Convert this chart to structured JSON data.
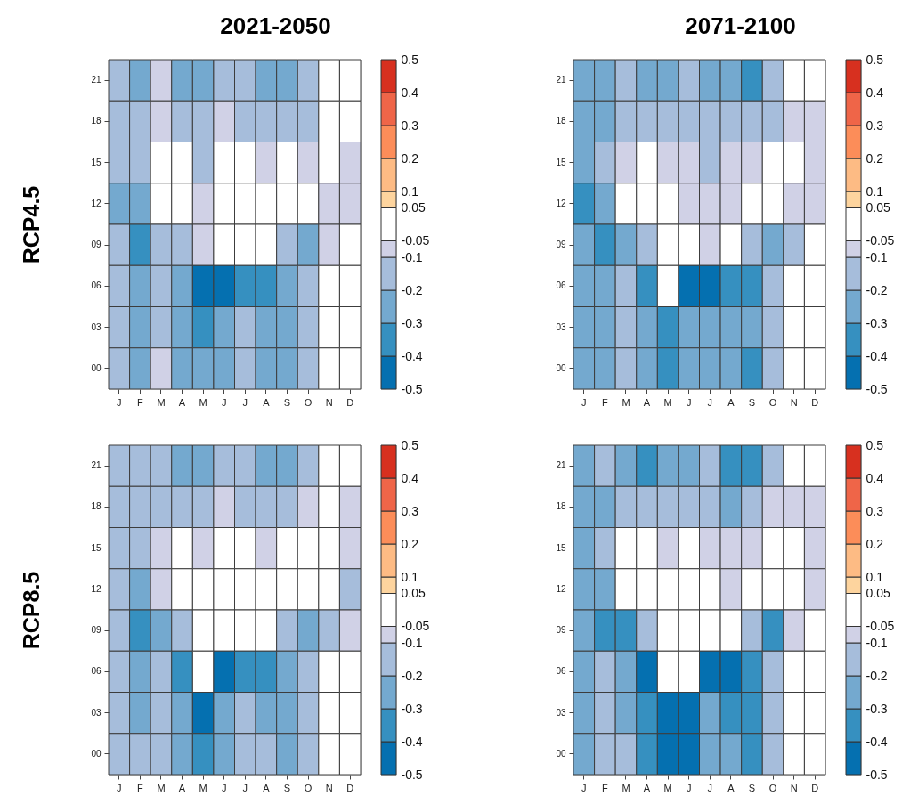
{
  "chart_data": [
    {
      "type": "heatmap",
      "title": "2021-2050",
      "ylabel": "RCP4.5",
      "categories": [
        "J",
        "F",
        "M",
        "A",
        "M",
        "J",
        "J",
        "A",
        "S",
        "O",
        "N",
        "D"
      ],
      "y_categories": [
        "21",
        "18",
        "15",
        "12",
        "09",
        "06",
        "03",
        "00"
      ],
      "cells": [
        [
          -0.15,
          -0.25,
          -0.075,
          -0.25,
          -0.25,
          -0.15,
          -0.15,
          -0.25,
          -0.25,
          -0.15,
          0,
          0
        ],
        [
          -0.15,
          -0.15,
          -0.075,
          -0.15,
          -0.15,
          -0.075,
          -0.15,
          -0.15,
          -0.15,
          -0.15,
          0,
          0
        ],
        [
          -0.15,
          -0.15,
          0,
          0,
          -0.15,
          0,
          0,
          -0.075,
          0,
          -0.075,
          0,
          -0.075
        ],
        [
          -0.25,
          -0.25,
          0,
          0,
          -0.075,
          0,
          0,
          0,
          0,
          0,
          -0.075,
          -0.075
        ],
        [
          -0.15,
          -0.35,
          -0.15,
          -0.15,
          -0.075,
          0,
          0,
          0,
          -0.15,
          -0.25,
          -0.075,
          0
        ],
        [
          -0.15,
          -0.25,
          -0.15,
          -0.25,
          -0.45,
          -0.45,
          -0.35,
          -0.35,
          -0.25,
          -0.15,
          0,
          0
        ],
        [
          -0.15,
          -0.25,
          -0.15,
          -0.25,
          -0.35,
          -0.25,
          -0.15,
          -0.25,
          -0.25,
          -0.15,
          0,
          0
        ],
        [
          -0.15,
          -0.25,
          -0.075,
          -0.25,
          -0.25,
          -0.25,
          -0.15,
          -0.25,
          -0.25,
          -0.15,
          0,
          0
        ]
      ],
      "clim": [
        -0.5,
        0.5
      ],
      "cticks": [
        -0.5,
        -0.4,
        -0.3,
        -0.2,
        -0.1,
        -0.05,
        0.05,
        0.1,
        0.2,
        0.3,
        0.4,
        0.5
      ],
      "colors": [
        "#0570b0",
        "#3690c0",
        "#74a9cf",
        "#a6bddb",
        "#d0d1e6",
        "#ffffff",
        "#fdd49e",
        "#fdbb84",
        "#fc8d59",
        "#ef6548",
        "#d7301f"
      ]
    },
    {
      "type": "heatmap",
      "title": "2071-2100",
      "categories": [
        "J",
        "F",
        "M",
        "A",
        "M",
        "J",
        "J",
        "A",
        "S",
        "O",
        "N",
        "D"
      ],
      "y_categories": [
        "21",
        "18",
        "15",
        "12",
        "09",
        "06",
        "03",
        "00"
      ],
      "cells": [
        [
          -0.25,
          -0.25,
          -0.15,
          -0.25,
          -0.25,
          -0.15,
          -0.25,
          -0.25,
          -0.35,
          -0.15,
          0,
          0
        ],
        [
          -0.25,
          -0.25,
          -0.15,
          -0.15,
          -0.15,
          -0.15,
          -0.15,
          -0.15,
          -0.15,
          -0.15,
          -0.075,
          -0.075
        ],
        [
          -0.25,
          -0.15,
          -0.075,
          0,
          -0.075,
          -0.075,
          -0.15,
          -0.075,
          -0.075,
          0,
          0,
          -0.075
        ],
        [
          -0.35,
          -0.25,
          0,
          0,
          0,
          -0.075,
          -0.075,
          -0.075,
          0,
          0,
          -0.075,
          -0.075
        ],
        [
          -0.25,
          -0.35,
          -0.25,
          -0.15,
          0,
          0,
          -0.075,
          0,
          -0.15,
          -0.25,
          -0.15,
          0
        ],
        [
          -0.25,
          -0.25,
          -0.15,
          -0.35,
          0,
          -0.45,
          -0.45,
          -0.35,
          -0.35,
          -0.15,
          0,
          0
        ],
        [
          -0.25,
          -0.25,
          -0.15,
          -0.25,
          -0.35,
          -0.25,
          -0.25,
          -0.25,
          -0.25,
          -0.15,
          0,
          0
        ],
        [
          -0.25,
          -0.25,
          -0.15,
          -0.25,
          -0.35,
          -0.25,
          -0.25,
          -0.25,
          -0.35,
          -0.15,
          0,
          0
        ]
      ],
      "clim": [
        -0.5,
        0.5
      ],
      "cticks": [
        -0.5,
        -0.4,
        -0.3,
        -0.2,
        -0.1,
        -0.05,
        0.05,
        0.1,
        0.2,
        0.3,
        0.4,
        0.5
      ],
      "colors": [
        "#0570b0",
        "#3690c0",
        "#74a9cf",
        "#a6bddb",
        "#d0d1e6",
        "#ffffff",
        "#fdd49e",
        "#fdbb84",
        "#fc8d59",
        "#ef6548",
        "#d7301f"
      ]
    },
    {
      "type": "heatmap",
      "ylabel": "RCP8.5",
      "categories": [
        "J",
        "F",
        "M",
        "A",
        "M",
        "J",
        "J",
        "A",
        "S",
        "O",
        "N",
        "D"
      ],
      "y_categories": [
        "21",
        "18",
        "15",
        "12",
        "09",
        "06",
        "03",
        "00"
      ],
      "cells": [
        [
          -0.15,
          -0.15,
          -0.15,
          -0.25,
          -0.25,
          -0.15,
          -0.15,
          -0.25,
          -0.25,
          -0.15,
          0,
          0
        ],
        [
          -0.15,
          -0.15,
          -0.15,
          -0.15,
          -0.15,
          -0.075,
          -0.15,
          -0.15,
          -0.15,
          -0.075,
          0,
          -0.075
        ],
        [
          -0.15,
          -0.15,
          -0.075,
          0,
          -0.075,
          0,
          0,
          -0.075,
          0,
          0,
          0,
          -0.075
        ],
        [
          -0.15,
          -0.25,
          -0.075,
          0,
          0,
          0,
          0,
          0,
          0,
          0,
          0,
          -0.15
        ],
        [
          -0.15,
          -0.35,
          -0.25,
          -0.15,
          0,
          0,
          0,
          0,
          -0.15,
          -0.25,
          -0.15,
          -0.075
        ],
        [
          -0.15,
          -0.25,
          -0.15,
          -0.35,
          0,
          -0.45,
          -0.35,
          -0.35,
          -0.25,
          -0.15,
          0,
          0
        ],
        [
          -0.15,
          -0.25,
          -0.15,
          -0.25,
          -0.45,
          -0.25,
          -0.15,
          -0.25,
          -0.25,
          -0.15,
          0,
          0
        ],
        [
          -0.15,
          -0.15,
          -0.15,
          -0.25,
          -0.35,
          -0.25,
          -0.15,
          -0.15,
          -0.25,
          -0.15,
          0,
          0
        ]
      ],
      "clim": [
        -0.5,
        0.5
      ],
      "cticks": [
        -0.5,
        -0.4,
        -0.3,
        -0.2,
        -0.1,
        -0.05,
        0.05,
        0.1,
        0.2,
        0.3,
        0.4,
        0.5
      ],
      "colors": [
        "#0570b0",
        "#3690c0",
        "#74a9cf",
        "#a6bddb",
        "#d0d1e6",
        "#ffffff",
        "#fdd49e",
        "#fdbb84",
        "#fc8d59",
        "#ef6548",
        "#d7301f"
      ]
    },
    {
      "type": "heatmap",
      "categories": [
        "J",
        "F",
        "M",
        "A",
        "M",
        "J",
        "J",
        "A",
        "S",
        "O",
        "N",
        "D"
      ],
      "y_categories": [
        "21",
        "18",
        "15",
        "12",
        "09",
        "06",
        "03",
        "00"
      ],
      "cells": [
        [
          -0.25,
          -0.15,
          -0.25,
          -0.35,
          -0.25,
          -0.25,
          -0.15,
          -0.35,
          -0.35,
          -0.15,
          0,
          0
        ],
        [
          -0.25,
          -0.25,
          -0.15,
          -0.15,
          -0.15,
          -0.15,
          -0.15,
          -0.25,
          -0.15,
          -0.075,
          -0.075,
          -0.075
        ],
        [
          -0.25,
          -0.15,
          0,
          0,
          -0.075,
          0,
          -0.075,
          -0.075,
          -0.075,
          0,
          0,
          -0.075
        ],
        [
          -0.25,
          -0.25,
          0,
          0,
          0,
          0,
          0,
          -0.075,
          0,
          0,
          0,
          -0.075
        ],
        [
          -0.25,
          -0.35,
          -0.35,
          -0.15,
          0,
          0,
          0,
          0,
          -0.15,
          -0.35,
          -0.075,
          0
        ],
        [
          -0.25,
          -0.15,
          -0.25,
          -0.45,
          0,
          0,
          -0.45,
          -0.45,
          -0.35,
          -0.15,
          0,
          0
        ],
        [
          -0.25,
          -0.15,
          -0.25,
          -0.35,
          -0.45,
          -0.45,
          -0.25,
          -0.35,
          -0.35,
          -0.15,
          0,
          0
        ],
        [
          -0.25,
          -0.15,
          -0.15,
          -0.35,
          -0.45,
          -0.45,
          -0.25,
          -0.25,
          -0.35,
          -0.15,
          0,
          0
        ]
      ],
      "clim": [
        -0.5,
        0.5
      ],
      "cticks": [
        -0.5,
        -0.4,
        -0.3,
        -0.2,
        -0.1,
        -0.05,
        0.05,
        0.1,
        0.2,
        0.3,
        0.4,
        0.5
      ],
      "colors": [
        "#0570b0",
        "#3690c0",
        "#74a9cf",
        "#a6bddb",
        "#d0d1e6",
        "#ffffff",
        "#fdd49e",
        "#fdbb84",
        "#fc8d59",
        "#ef6548",
        "#d7301f"
      ]
    }
  ]
}
